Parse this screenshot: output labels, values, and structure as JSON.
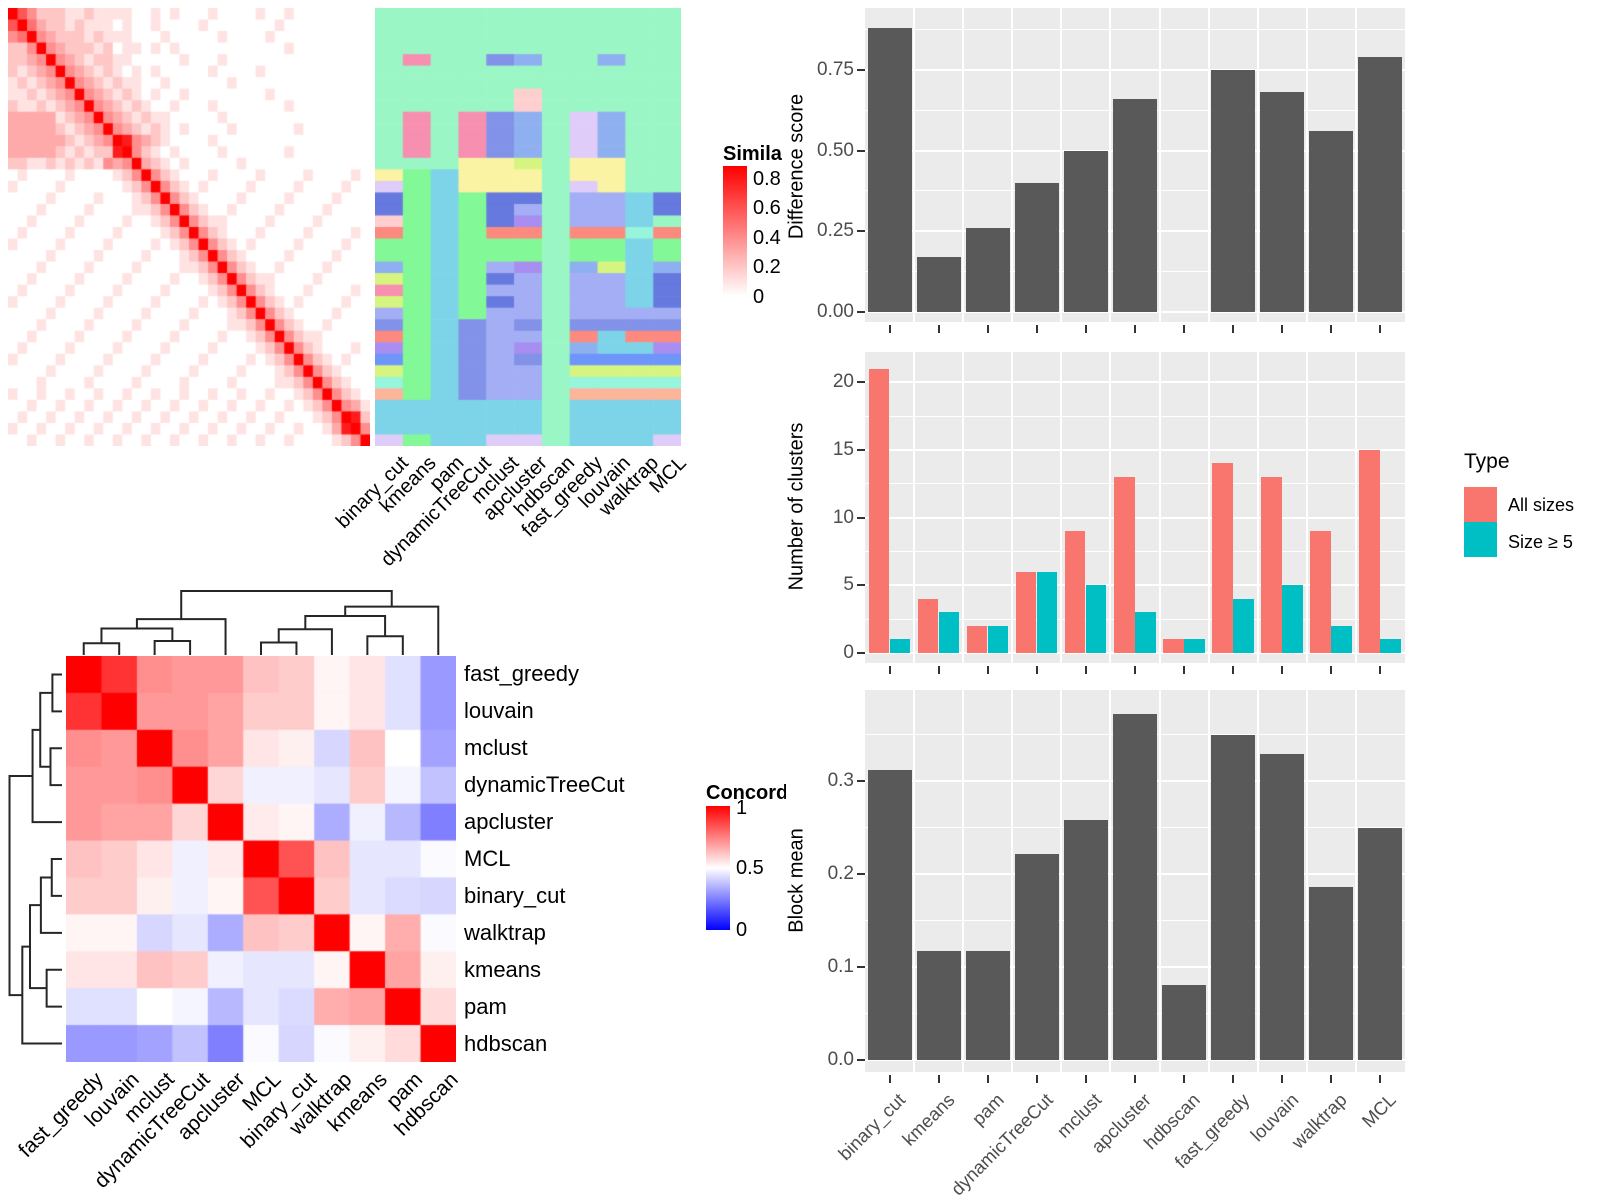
{
  "colors": {
    "bar": "#595959",
    "panel_bg": "#EBEBEB",
    "grid": "#FFFFFF",
    "axis_text": "#4D4D4D",
    "tick_mark": "#333333",
    "dendrogram": "#262626",
    "heat_high": "#FF0000",
    "heat_low": "#FFFFFF",
    "concordance_low": "#0000FF",
    "series_all_sizes": "#F8766D",
    "series_size_ge5": "#00BFC4"
  },
  "methods_heatmap_order": [
    "binary_cut",
    "kmeans",
    "pam",
    "dynamicTreeCut",
    "mclust",
    "apcluster",
    "hdbscan",
    "fast_greedy",
    "louvain",
    "walktrap",
    "MCL"
  ],
  "methods_concordance_order": [
    "fast_greedy",
    "louvain",
    "mclust",
    "dynamicTreeCut",
    "apcluster",
    "MCL",
    "binary_cut",
    "walktrap",
    "kmeans",
    "pam",
    "hdbscan"
  ],
  "chart_data": [
    {
      "type": "heatmap",
      "name": "similarity_heatmap",
      "legend_title": "Simila",
      "legend_ticks": [
        "0.8",
        "0.6",
        "0.4",
        "0.2",
        "0"
      ],
      "colormap": "white-to-red",
      "n": 38,
      "intensity_rows_0to9": [
        "96422211211110010100010000100100000000",
        "69532212111010010000100000001000000000",
        "45943222121110001000001000010000000000",
        "22494322212011010100000000000100000000",
        "22349432122110000010001000000000000000",
        "21234943212101010000010000100000000000",
        "12123494321211001000000100000000000000",
        "11212349432121010010000000010000000000",
        "21121234943212100100010000000100000000",
        "33333123494321211000001000000000000000",
        "33333212349432121010000100000010000000",
        "33333321234984321000010000000000000000",
        "33333212122894210100001000000100000000",
        "22112121214349321010000010000000000000",
        "01000010000124942100010000100001000010",
        "10000100000012494210100001000010000100",
        "00001000010001249421000010000100001000",
        "00010000100001124942100100001000010000",
        "00100001000010012494211000010000100000",
        "01000010000100001249421000100001000010",
        "10000100001000010124942101000010000100",
        "00001000010000100012494210000100001000",
        "00010000100001000011249421001000010000",
        "00100001000010000100124942110000100000",
        "01000010000100001000012494210001000010",
        "10000100001000010000101249421010000100",
        "00001000010000100001000124942100001000",
        "00010000100001000010000112494210010000",
        "00100001000010000100001001249421100000",
        "01000010000100001000010000124942100010",
        "10000100001000010000100001012494210100",
        "00001000010000100001000010001249421000",
        "00010000100001000010000100001124942100",
        "10010010010010010010010010010012494210",
        "00100100100100100100100100100101249431",
        "01001001001001001001001001001000124982",
        "10010010010010010010010010010010013894",
        "00100100100100100100100100100100001249"
      ]
    },
    {
      "type": "heatmap",
      "name": "partition_annotation",
      "columns": [
        "binary_cut",
        "kmeans",
        "pam",
        "dynamicTreeCut",
        "mclust",
        "apcluster",
        "hdbscan",
        "fast_greedy",
        "louvain",
        "walktrap",
        "MCL"
      ],
      "palette": {
        "G": "#9bf6c5",
        "P": "#f78fb0",
        "B": "#8292e8",
        "L": "#8fb0f0",
        "C": "#ffcfd0",
        "V": "#e0ccf8",
        "Y": "#faf3a3",
        "K": "#d6f580",
        "E": "#82f996",
        "S": "#7dd4e8",
        "R": "#fc8a7e",
        "M": "#a3aef5",
        "N": "#6679de",
        "U": "#a88ef0",
        "A": "#96f5db",
        "O": "#fcb49b",
        "F": "#6e95fa"
      },
      "cell_rows": [
        "GGGGGGGGGGG",
        "GGGGGGGGGGG",
        "GGGGGGGGGGG",
        "GGGGGGGGGGG",
        "GPGGBLGGLGG",
        "GGGGGGGGGGG",
        "GGGGGGGGGGG",
        "GGGGGCGGGGG",
        "GGGGGCGGGGG",
        "GPGPBLGVLGG",
        "GPGPBLGVLGG",
        "GPGPBLGVLGG",
        "GPGPBLGVLGG",
        "GGGYYKGYYGG",
        "YESYYYGYYGG",
        "VESYYYGVYGG",
        "NESENNGMMSN",
        "NESENMGMMSN",
        "CESENUGMMSG",
        "RESERRGRRAR",
        "EESEEEGEESE",
        "EESEEEGEESE",
        "LESEMUGLKSL",
        "KESENMGMMSN",
        "PESEMMGMMSN",
        "KESENMGMMSN",
        "MESEMMGMMMM",
        "BESBMBGBBBB",
        "RESBMMGRSRR",
        "UESBMUGLSSU",
        "FESBMBGFFFF",
        "KESBMMGKKKK",
        "AESBMMGAAAA",
        "OESBMMGOOOO",
        "SSSSSSGSSSS",
        "SSSSSSGSSSS",
        "SSSSSSGSSSS",
        "VESSVVGSSSV"
      ]
    },
    {
      "type": "heatmap",
      "name": "concordance_heatmap",
      "legend_title": "Concord",
      "legend_ticks": [
        "1",
        "0.5",
        "0"
      ],
      "labels": [
        "fast_greedy",
        "louvain",
        "mclust",
        "dynamicTreeCut",
        "apcluster",
        "MCL",
        "binary_cut",
        "walktrap",
        "kmeans",
        "pam",
        "hdbscan"
      ],
      "matrix": [
        [
          1.0,
          0.9,
          0.72,
          0.7,
          0.7,
          0.62,
          0.6,
          0.52,
          0.55,
          0.44,
          0.3
        ],
        [
          0.9,
          1.0,
          0.7,
          0.7,
          0.68,
          0.6,
          0.6,
          0.52,
          0.55,
          0.44,
          0.3
        ],
        [
          0.72,
          0.7,
          1.0,
          0.72,
          0.68,
          0.55,
          0.53,
          0.42,
          0.62,
          0.5,
          0.32
        ],
        [
          0.7,
          0.7,
          0.72,
          1.0,
          0.58,
          0.47,
          0.47,
          0.45,
          0.6,
          0.48,
          0.38
        ],
        [
          0.7,
          0.68,
          0.68,
          0.58,
          1.0,
          0.54,
          0.52,
          0.34,
          0.47,
          0.36,
          0.25
        ],
        [
          0.62,
          0.6,
          0.55,
          0.47,
          0.54,
          1.0,
          0.84,
          0.62,
          0.45,
          0.45,
          0.49
        ],
        [
          0.6,
          0.6,
          0.53,
          0.47,
          0.52,
          0.84,
          1.0,
          0.6,
          0.45,
          0.43,
          0.42
        ],
        [
          0.52,
          0.52,
          0.42,
          0.45,
          0.34,
          0.62,
          0.6,
          1.0,
          0.52,
          0.66,
          0.49
        ],
        [
          0.55,
          0.55,
          0.62,
          0.6,
          0.47,
          0.45,
          0.45,
          0.52,
          1.0,
          0.68,
          0.53
        ],
        [
          0.44,
          0.44,
          0.5,
          0.48,
          0.36,
          0.45,
          0.43,
          0.66,
          0.68,
          1.0,
          0.57
        ],
        [
          0.3,
          0.3,
          0.32,
          0.38,
          0.25,
          0.49,
          0.42,
          0.49,
          0.53,
          0.57,
          1.0
        ]
      ],
      "dendrogram_merges": [
        [
          0,
          1,
          0.15
        ],
        [
          2,
          3,
          0.18
        ],
        [
          11,
          12,
          0.34
        ],
        [
          13,
          4,
          0.46
        ],
        [
          5,
          6,
          0.16
        ],
        [
          15,
          7,
          0.33
        ],
        [
          8,
          9,
          0.24
        ],
        [
          16,
          17,
          0.5
        ],
        [
          18,
          10,
          0.62
        ],
        [
          14,
          19,
          0.82
        ]
      ]
    },
    {
      "type": "bar",
      "name": "difference_score",
      "ylabel": "Difference score",
      "yticks": [
        "0.00",
        "0.25",
        "0.50",
        "0.75"
      ],
      "ytick_values": [
        0,
        0.25,
        0.5,
        0.75
      ],
      "categories": [
        "binary_cut",
        "kmeans",
        "pam",
        "dynamicTreeCut",
        "mclust",
        "apcluster",
        "hdbscan",
        "fast_greedy",
        "louvain",
        "walktrap",
        "MCL"
      ],
      "values": [
        0.88,
        0.17,
        0.26,
        0.4,
        0.5,
        0.66,
        null,
        0.75,
        0.68,
        0.56,
        0.79
      ]
    },
    {
      "type": "bar",
      "name": "number_of_clusters",
      "ylabel": "Number of clusters",
      "yticks": [
        "0",
        "5",
        "10",
        "15",
        "20"
      ],
      "ytick_values": [
        0,
        5,
        10,
        15,
        20
      ],
      "legend_title": "Type",
      "categories": [
        "binary_cut",
        "kmeans",
        "pam",
        "dynamicTreeCut",
        "mclust",
        "apcluster",
        "hdbscan",
        "fast_greedy",
        "louvain",
        "walktrap",
        "MCL"
      ],
      "series": [
        {
          "name": "All sizes",
          "color": "#F8766D",
          "values": [
            21,
            4,
            2,
            6,
            9,
            13,
            1,
            14,
            13,
            9,
            15
          ]
        },
        {
          "name": "Size ≥ 5",
          "color": "#00BFC4",
          "values": [
            1,
            3,
            2,
            6,
            5,
            3,
            1,
            4,
            5,
            2,
            1
          ]
        }
      ]
    },
    {
      "type": "bar",
      "name": "block_mean",
      "ylabel": "Block mean",
      "yticks": [
        "0.0",
        "0.1",
        "0.2",
        "0.3"
      ],
      "ytick_values": [
        0,
        0.1,
        0.2,
        0.3
      ],
      "categories": [
        "binary_cut",
        "kmeans",
        "pam",
        "dynamicTreeCut",
        "mclust",
        "apcluster",
        "hdbscan",
        "fast_greedy",
        "louvain",
        "walktrap",
        "MCL"
      ],
      "values": [
        0.312,
        0.117,
        0.117,
        0.221,
        0.258,
        0.372,
        0.081,
        0.349,
        0.329,
        0.186,
        0.249
      ]
    }
  ]
}
